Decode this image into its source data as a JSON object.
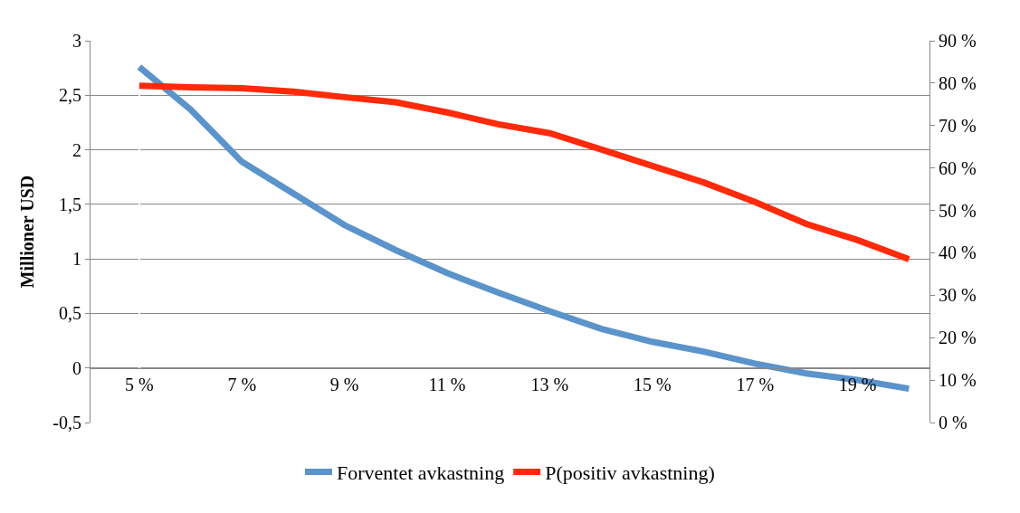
{
  "chart_data": {
    "type": "line",
    "ylabel": "Millioner USD",
    "categories": [
      "5 %",
      null,
      "7 %",
      null,
      "9 %",
      null,
      "11 %",
      null,
      "13 %",
      null,
      "15 %",
      null,
      "17 %",
      null,
      "19 %",
      null
    ],
    "series": [
      {
        "name": "Forventet avkastning",
        "color": "#5b93cb",
        "values": [
          2.76,
          2.37,
          1.89,
          1.6,
          1.31,
          1.08,
          0.87,
          0.69,
          0.52,
          0.36,
          0.24,
          0.15,
          0.04,
          -0.05,
          -0.11,
          -0.19
        ]
      },
      {
        "name": "P(positiv avkastning)",
        "color": "#ff2a0a",
        "axis": "y2",
        "values": [
          79.4,
          79.0,
          78.8,
          78.0,
          76.7,
          75.5,
          73.1,
          70.3,
          68.2,
          64.4,
          60.5,
          56.6,
          52.0,
          46.8,
          43.0,
          38.5
        ]
      }
    ],
    "ylim": [
      -0.5,
      3
    ],
    "yticks": [
      {
        "value": -0.5,
        "label": "-0,5"
      },
      0,
      {
        "value": 0.5,
        "label": "0,5"
      },
      1,
      {
        "value": 1.5,
        "label": "1,5"
      },
      2,
      {
        "value": 2.5,
        "label": "2,5"
      },
      3
    ],
    "y2lim": [
      0,
      90
    ],
    "y2ticks": [
      {
        "value": 0,
        "label": "0 %"
      },
      {
        "value": 10,
        "label": "10 %"
      },
      {
        "value": 20,
        "label": "20 %"
      },
      {
        "value": 30,
        "label": "30 %"
      },
      {
        "value": 40,
        "label": "40 %"
      },
      {
        "value": 50,
        "label": "50 %"
      },
      {
        "value": 60,
        "label": "60 %"
      },
      {
        "value": 70,
        "label": "70 %"
      },
      {
        "value": 80,
        "label": "80 %"
      },
      {
        "value": 90,
        "label": "90 %"
      }
    ],
    "grid": "y",
    "legend": "bottom",
    "marker": "none",
    "line_style": "solid"
  }
}
